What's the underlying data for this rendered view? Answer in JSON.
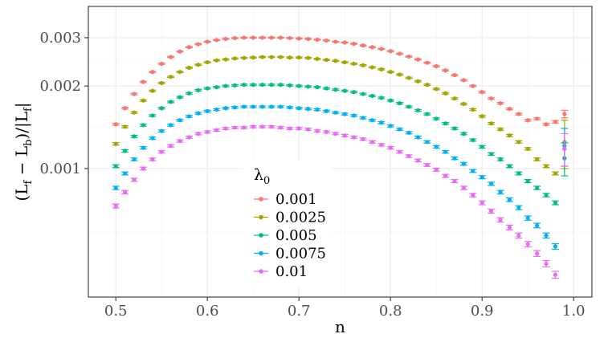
{
  "chart_data": {
    "type": "scatter",
    "xlabel": "n",
    "ylabel": "(L_f − L_b)/|L_f|",
    "ylabel_parts": {
      "open": "(L",
      "sub1": "f",
      "minus": " − L",
      "sub2": "b",
      "mid": ")/|L",
      "sub3": "f",
      "close": "|"
    },
    "y_scale": "log",
    "xlim": [
      0.47,
      1.02
    ],
    "ylim": [
      0.00034,
      0.0039
    ],
    "x_ticks": [
      0.5,
      0.6,
      0.7,
      0.8,
      0.9,
      1.0
    ],
    "x_tick_labels": [
      "0.5",
      "0.6",
      "0.7",
      "0.8",
      "0.9",
      "1.0"
    ],
    "y_ticks": [
      0.001,
      0.002,
      0.003
    ],
    "y_tick_labels": [
      "0.001",
      "0.002",
      "0.003"
    ],
    "grid": true,
    "legend": {
      "title": "λ",
      "title_sub": "0",
      "position": "inside-bottom-center"
    },
    "series": [
      {
        "name": "0.001",
        "color": "#F8766D",
        "x": [
          0.5,
          0.51,
          0.52,
          0.53,
          0.54,
          0.55,
          0.56,
          0.57,
          0.58,
          0.59,
          0.6,
          0.61,
          0.62,
          0.63,
          0.64,
          0.65,
          0.66,
          0.67,
          0.68,
          0.69,
          0.7,
          0.71,
          0.72,
          0.73,
          0.74,
          0.75,
          0.76,
          0.77,
          0.78,
          0.79,
          0.8,
          0.81,
          0.82,
          0.83,
          0.84,
          0.85,
          0.86,
          0.87,
          0.88,
          0.89,
          0.9,
          0.91,
          0.92,
          0.93,
          0.94,
          0.95,
          0.96,
          0.97,
          0.98,
          0.99
        ],
        "y": [
          0.00145,
          0.00166,
          0.00187,
          0.00207,
          0.00225,
          0.00241,
          0.00255,
          0.00267,
          0.00277,
          0.00284,
          0.0029,
          0.00294,
          0.00297,
          0.00299,
          0.003,
          0.003,
          0.003,
          0.003,
          0.003,
          0.00299,
          0.00298,
          0.00297,
          0.00295,
          0.00293,
          0.0029,
          0.00288,
          0.00285,
          0.00281,
          0.00277,
          0.00273,
          0.00268,
          0.00262,
          0.00256,
          0.0025,
          0.00243,
          0.00236,
          0.00228,
          0.00219,
          0.0021,
          0.002,
          0.0019,
          0.0018,
          0.00173,
          0.00165,
          0.00158,
          0.0015,
          0.00152,
          0.00145,
          0.00148,
          0.00158
        ],
        "err": [
          1.2e-05,
          1.2e-05,
          1.2e-05,
          1.2e-05,
          1.2e-05,
          1.2e-05,
          1.2e-05,
          1.2e-05,
          1.2e-05,
          1.2e-05,
          1.2e-05,
          1.2e-05,
          1.2e-05,
          1.2e-05,
          1.2e-05,
          1.2e-05,
          1.2e-05,
          1.2e-05,
          1.2e-05,
          1.2e-05,
          1.2e-05,
          1.2e-05,
          1.2e-05,
          1.2e-05,
          1.2e-05,
          1.2e-05,
          1.2e-05,
          1.2e-05,
          1.2e-05,
          1.2e-05,
          1.2e-05,
          1.2e-05,
          1.2e-05,
          1.2e-05,
          1.2e-05,
          1.2e-05,
          1.2e-05,
          1.2e-05,
          1.2e-05,
          1.2e-05,
          1.2e-05,
          1.2e-05,
          1.2e-05,
          1.2e-05,
          1.2e-05,
          1.2e-05,
          1.2e-05,
          1.2e-05,
          1.5e-05,
          5e-05
        ]
      },
      {
        "name": "0.0025",
        "color": "#A3A500",
        "x": [
          0.5,
          0.51,
          0.52,
          0.53,
          0.54,
          0.55,
          0.56,
          0.57,
          0.58,
          0.59,
          0.6,
          0.61,
          0.62,
          0.63,
          0.64,
          0.65,
          0.66,
          0.67,
          0.68,
          0.69,
          0.7,
          0.71,
          0.72,
          0.73,
          0.74,
          0.75,
          0.76,
          0.77,
          0.78,
          0.79,
          0.8,
          0.81,
          0.82,
          0.83,
          0.84,
          0.85,
          0.86,
          0.87,
          0.88,
          0.89,
          0.9,
          0.91,
          0.92,
          0.93,
          0.94,
          0.95,
          0.96,
          0.97,
          0.98,
          0.99
        ],
        "y": [
          0.00123,
          0.00142,
          0.0016,
          0.00177,
          0.00192,
          0.00205,
          0.00216,
          0.00225,
          0.00233,
          0.00239,
          0.00244,
          0.00248,
          0.0025,
          0.00252,
          0.00253,
          0.00254,
          0.00255,
          0.00255,
          0.00255,
          0.00254,
          0.00254,
          0.00253,
          0.00251,
          0.00249,
          0.00247,
          0.00244,
          0.00241,
          0.00238,
          0.00234,
          0.0023,
          0.00225,
          0.0022,
          0.00214,
          0.00208,
          0.00202,
          0.00195,
          0.00188,
          0.0018,
          0.00172,
          0.00164,
          0.00155,
          0.00146,
          0.00139,
          0.00132,
          0.00125,
          0.00118,
          0.00108,
          0.00102,
          0.00096,
          0.00125
        ],
        "err": [
          1.2e-05,
          1.2e-05,
          1.2e-05,
          1.2e-05,
          1.2e-05,
          1.2e-05,
          1.2e-05,
          1.2e-05,
          1.2e-05,
          1.2e-05,
          1.2e-05,
          1.2e-05,
          1.2e-05,
          1.2e-05,
          1.2e-05,
          1.2e-05,
          1.2e-05,
          1.2e-05,
          1.2e-05,
          1.2e-05,
          1.2e-05,
          1.2e-05,
          1.2e-05,
          1.2e-05,
          1.2e-05,
          1.2e-05,
          1.2e-05,
          1.2e-05,
          1.2e-05,
          1.2e-05,
          1.2e-05,
          1.2e-05,
          1.2e-05,
          1.2e-05,
          1.2e-05,
          1.2e-05,
          1.2e-05,
          1.2e-05,
          1.2e-05,
          1.2e-05,
          1.2e-05,
          1.2e-05,
          1.2e-05,
          1.2e-05,
          1.2e-05,
          1.2e-05,
          1.2e-05,
          1.2e-05,
          1.2e-05,
          0.00025
        ]
      },
      {
        "name": "0.005",
        "color": "#00BF7D",
        "x": [
          0.5,
          0.51,
          0.52,
          0.53,
          0.54,
          0.55,
          0.56,
          0.57,
          0.58,
          0.59,
          0.6,
          0.61,
          0.62,
          0.63,
          0.64,
          0.65,
          0.66,
          0.67,
          0.68,
          0.69,
          0.7,
          0.71,
          0.72,
          0.73,
          0.74,
          0.75,
          0.76,
          0.77,
          0.78,
          0.79,
          0.8,
          0.81,
          0.82,
          0.83,
          0.84,
          0.85,
          0.86,
          0.87,
          0.88,
          0.89,
          0.9,
          0.91,
          0.92,
          0.93,
          0.94,
          0.95,
          0.96,
          0.97,
          0.98,
          0.99
        ],
        "y": [
          0.00102,
          0.00116,
          0.00131,
          0.00144,
          0.00156,
          0.00166,
          0.00175,
          0.00182,
          0.00188,
          0.00193,
          0.00196,
          0.00198,
          0.002,
          0.00201,
          0.00202,
          0.00202,
          0.00202,
          0.00202,
          0.00202,
          0.00201,
          0.002,
          0.00199,
          0.00198,
          0.00196,
          0.00194,
          0.00192,
          0.0019,
          0.00187,
          0.00184,
          0.00181,
          0.00177,
          0.00173,
          0.00168,
          0.00163,
          0.00158,
          0.00152,
          0.00146,
          0.0014,
          0.00134,
          0.00127,
          0.0012,
          0.00113,
          0.00108,
          0.00102,
          0.00096,
          0.0009,
          0.00085,
          0.0008,
          0.00075,
          0.00109
        ],
        "err": [
          1.2e-05,
          1.2e-05,
          1.2e-05,
          1.2e-05,
          1.2e-05,
          1.2e-05,
          1.2e-05,
          1.2e-05,
          1.2e-05,
          1.2e-05,
          1.2e-05,
          1.2e-05,
          1.2e-05,
          1.2e-05,
          1.2e-05,
          1.2e-05,
          1.2e-05,
          1.2e-05,
          1.2e-05,
          1.2e-05,
          1.2e-05,
          1.2e-05,
          1.2e-05,
          1.2e-05,
          1.2e-05,
          1.2e-05,
          1.2e-05,
          1.2e-05,
          1.2e-05,
          1.2e-05,
          1.2e-05,
          1.2e-05,
          1.2e-05,
          1.2e-05,
          1.2e-05,
          1.2e-05,
          1.2e-05,
          1.2e-05,
          1.2e-05,
          1.2e-05,
          1.2e-05,
          1.2e-05,
          1.2e-05,
          1.2e-05,
          1.2e-05,
          1.2e-05,
          1.2e-05,
          1.2e-05,
          1.2e-05,
          0.00015
        ]
      },
      {
        "name": "0.0075",
        "color": "#00B0F6",
        "x": [
          0.5,
          0.51,
          0.52,
          0.53,
          0.54,
          0.55,
          0.56,
          0.57,
          0.58,
          0.59,
          0.6,
          0.61,
          0.62,
          0.63,
          0.64,
          0.65,
          0.66,
          0.67,
          0.68,
          0.69,
          0.7,
          0.71,
          0.72,
          0.73,
          0.74,
          0.75,
          0.76,
          0.77,
          0.78,
          0.79,
          0.8,
          0.81,
          0.82,
          0.83,
          0.84,
          0.85,
          0.86,
          0.87,
          0.88,
          0.89,
          0.9,
          0.91,
          0.92,
          0.93,
          0.94,
          0.95,
          0.96,
          0.97,
          0.98,
          0.99
        ],
        "y": [
          0.00085,
          0.00096,
          0.00108,
          0.00119,
          0.00129,
          0.00137,
          0.00144,
          0.0015,
          0.00155,
          0.00159,
          0.00162,
          0.00164,
          0.00166,
          0.00167,
          0.00168,
          0.00168,
          0.00168,
          0.00168,
          0.00168,
          0.00167,
          0.00166,
          0.00165,
          0.00164,
          0.00162,
          0.0016,
          0.00158,
          0.00156,
          0.00153,
          0.0015,
          0.00147,
          0.00143,
          0.00139,
          0.00135,
          0.0013,
          0.00125,
          0.0012,
          0.00115,
          0.00109,
          0.00104,
          0.00098,
          0.00093,
          0.00088,
          0.00082,
          0.00077,
          0.00072,
          0.00066,
          0.00062,
          0.00057,
          0.00052,
          0.00121
        ],
        "err": [
          1.2e-05,
          1.2e-05,
          1.2e-05,
          1.2e-05,
          1.2e-05,
          1.2e-05,
          1.2e-05,
          1.2e-05,
          1.2e-05,
          1.2e-05,
          1.2e-05,
          1.2e-05,
          1.2e-05,
          1.2e-05,
          1.2e-05,
          1.2e-05,
          1.2e-05,
          1.2e-05,
          1.2e-05,
          1.2e-05,
          1.2e-05,
          1.2e-05,
          1.2e-05,
          1.2e-05,
          1.2e-05,
          1.2e-05,
          1.2e-05,
          1.2e-05,
          1.2e-05,
          1.2e-05,
          1.2e-05,
          1.2e-05,
          1.2e-05,
          1.2e-05,
          1.2e-05,
          1.2e-05,
          1.2e-05,
          1.2e-05,
          1.2e-05,
          1.2e-05,
          1.2e-05,
          1.2e-05,
          1.2e-05,
          1.2e-05,
          1.2e-05,
          1.2e-05,
          1.2e-05,
          1.2e-05,
          1.2e-05,
          0.00019
        ]
      },
      {
        "name": "0.01",
        "color": "#E76BF3",
        "x": [
          0.5,
          0.51,
          0.52,
          0.53,
          0.54,
          0.55,
          0.56,
          0.57,
          0.58,
          0.59,
          0.6,
          0.61,
          0.62,
          0.63,
          0.64,
          0.65,
          0.66,
          0.67,
          0.68,
          0.69,
          0.7,
          0.71,
          0.72,
          0.73,
          0.74,
          0.75,
          0.76,
          0.77,
          0.78,
          0.79,
          0.8,
          0.81,
          0.82,
          0.83,
          0.84,
          0.85,
          0.86,
          0.87,
          0.88,
          0.89,
          0.9,
          0.91,
          0.92,
          0.93,
          0.94,
          0.95,
          0.96,
          0.97,
          0.98,
          0.99
        ],
        "y": [
          0.00073,
          0.00082,
          0.00091,
          0.001,
          0.00108,
          0.00115,
          0.00121,
          0.00126,
          0.0013,
          0.00134,
          0.00136,
          0.00138,
          0.0014,
          0.00141,
          0.00141,
          0.00142,
          0.00142,
          0.00142,
          0.00141,
          0.0014,
          0.0014,
          0.00139,
          0.00137,
          0.00136,
          0.00134,
          0.00132,
          0.0013,
          0.00128,
          0.00125,
          0.00122,
          0.00119,
          0.00115,
          0.00111,
          0.00107,
          0.00103,
          0.00099,
          0.00094,
          0.0009,
          0.00085,
          0.0008,
          0.00075,
          0.0007,
          0.00065,
          0.00061,
          0.00057,
          0.00053,
          0.00049,
          0.00045,
          0.00041,
          0.00118
        ],
        "err": [
          1.2e-05,
          1.2e-05,
          1.2e-05,
          1.2e-05,
          1.2e-05,
          1.2e-05,
          1.2e-05,
          1.2e-05,
          1.2e-05,
          1.2e-05,
          1.2e-05,
          1.2e-05,
          1.2e-05,
          1.2e-05,
          1.2e-05,
          1.2e-05,
          1.2e-05,
          1.2e-05,
          1.2e-05,
          1.2e-05,
          1.2e-05,
          1.2e-05,
          1.2e-05,
          1.2e-05,
          1.2e-05,
          1.2e-05,
          1.2e-05,
          1.2e-05,
          1.2e-05,
          1.2e-05,
          1.2e-05,
          1.2e-05,
          1.2e-05,
          1.2e-05,
          1.2e-05,
          1.2e-05,
          1.2e-05,
          1.2e-05,
          1.2e-05,
          1.2e-05,
          1.2e-05,
          1.2e-05,
          1.2e-05,
          1.2e-05,
          1.2e-05,
          1.2e-05,
          1.2e-05,
          1.2e-05,
          1.2e-05,
          0.00016
        ]
      }
    ]
  }
}
